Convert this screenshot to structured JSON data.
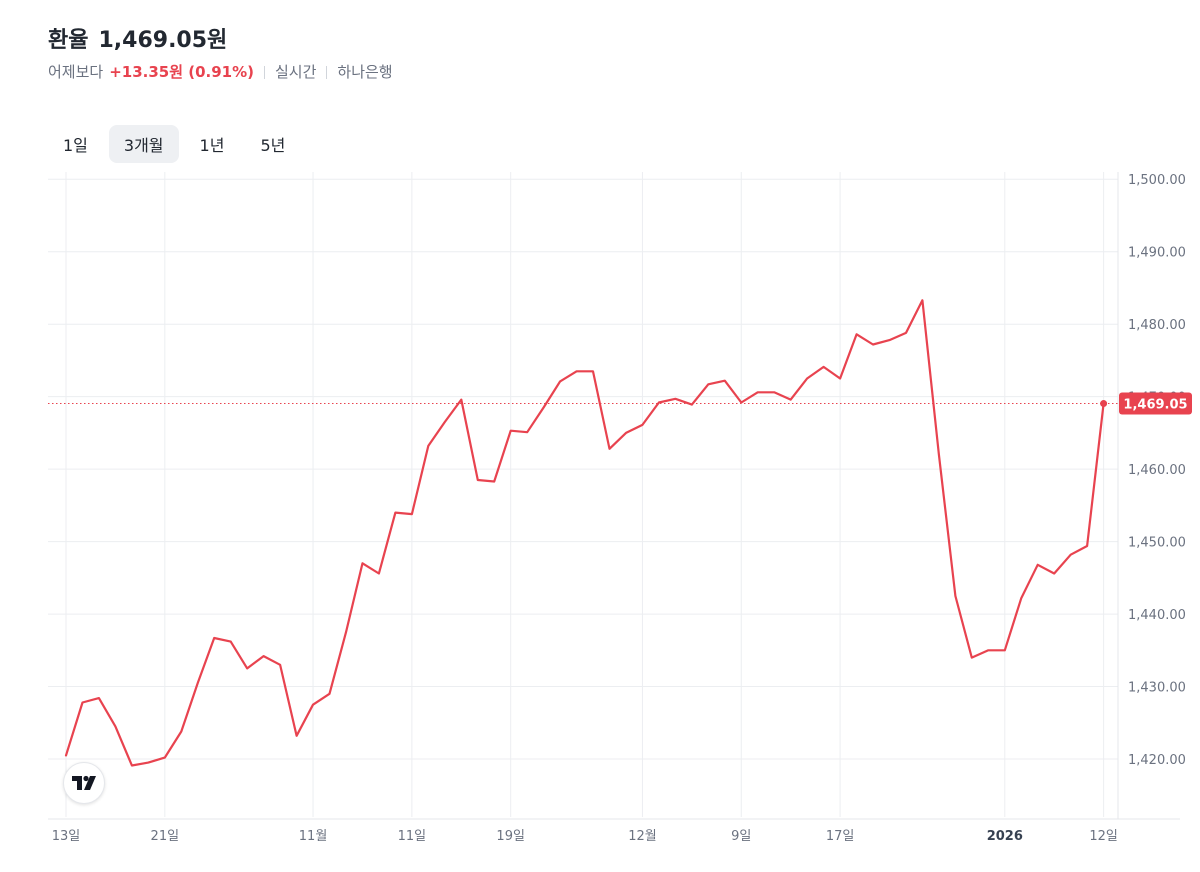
{
  "header": {
    "title": "환율",
    "price": "1,469.05원",
    "compare_label": "어제보다",
    "change": "+13.35원 (0.91%)",
    "realtime": "실시간",
    "source": "하나은행"
  },
  "tabs": [
    {
      "label": "1일",
      "active": false
    },
    {
      "label": "3개월",
      "active": true
    },
    {
      "label": "1년",
      "active": false
    },
    {
      "label": "5년",
      "active": false
    }
  ],
  "colors": {
    "line": "#e8434f",
    "grid": "#eceef1",
    "axis_text": "#6b7280"
  },
  "chart_data": {
    "type": "line",
    "ylim": [
      1412,
      1501
    ],
    "y_ticks": [
      1420,
      1430,
      1440,
      1450,
      1460,
      1470,
      1480,
      1490,
      1500
    ],
    "y_tick_labels": [
      "1,420.00",
      "1,430.00",
      "1,440.00",
      "1,450.00",
      "1,460.00",
      "1,470.00",
      "1,480.00",
      "1,490.00",
      "1,500.00"
    ],
    "x_tick_labels": [
      {
        "label": "13일",
        "index": 0,
        "bold": false
      },
      {
        "label": "21일",
        "index": 6,
        "bold": false
      },
      {
        "label": "11월",
        "index": 15,
        "bold": false
      },
      {
        "label": "11일",
        "index": 21,
        "bold": false
      },
      {
        "label": "19일",
        "index": 27,
        "bold": false
      },
      {
        "label": "12월",
        "index": 35,
        "bold": false
      },
      {
        "label": "9일",
        "index": 41,
        "bold": false
      },
      {
        "label": "17일",
        "index": 47,
        "bold": false
      },
      {
        "label": "2026",
        "index": 57,
        "bold": true
      },
      {
        "label": "12일",
        "index": 63,
        "bold": false
      }
    ],
    "current_value": 1469.05,
    "current_label": "1,469.05",
    "values": [
      1420.5,
      1427.8,
      1428.4,
      1424.5,
      1419.1,
      1419.5,
      1420.2,
      1423.8,
      1430.5,
      1436.7,
      1436.2,
      1432.5,
      1434.2,
      1433.0,
      1423.2,
      1427.5,
      1429.0,
      1437.5,
      1447.0,
      1445.6,
      1454.0,
      1453.8,
      1463.2,
      1466.5,
      1469.6,
      1458.5,
      1458.3,
      1465.3,
      1465.1,
      1468.5,
      1472.1,
      1473.5,
      1473.5,
      1462.8,
      1465.0,
      1466.1,
      1469.2,
      1469.7,
      1468.9,
      1471.7,
      1472.2,
      1469.2,
      1470.6,
      1470.6,
      1469.6,
      1472.5,
      1474.1,
      1472.5,
      1478.6,
      1477.2,
      1477.8,
      1478.8,
      1483.3,
      1462.0,
      1442.5,
      1434.0,
      1435.0,
      1435.0,
      1442.2,
      1446.8,
      1445.6,
      1448.2,
      1449.4,
      1469.05
    ]
  }
}
